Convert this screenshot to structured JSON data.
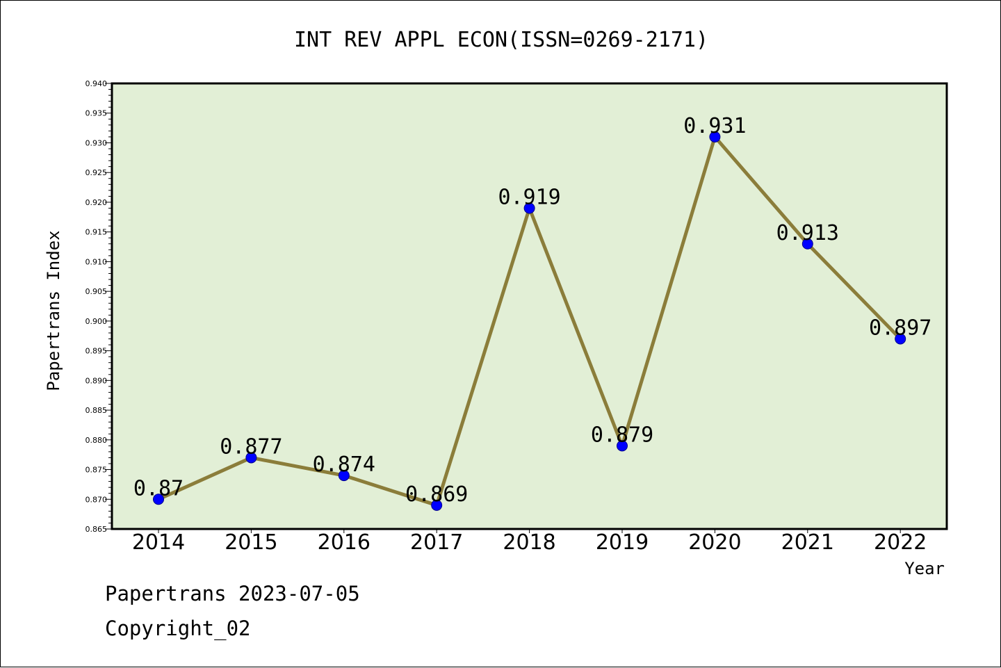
{
  "chart_data": {
    "type": "line",
    "title": "INT REV APPL ECON(ISSN=0269-2171)",
    "xlabel": "Year",
    "ylabel": "Papertrans Index",
    "categories": [
      "2014",
      "2015",
      "2016",
      "2017",
      "2018",
      "2019",
      "2020",
      "2021",
      "2022"
    ],
    "series": [
      {
        "values": [
          0.87,
          0.877,
          0.874,
          0.869,
          0.919,
          0.879,
          0.931,
          0.913,
          0.897
        ],
        "labels": [
          "0.87",
          "0.877",
          "0.874",
          "0.869",
          "0.919",
          "0.879",
          "0.931",
          "0.913",
          "0.897"
        ],
        "line_color": "#8b7d3a",
        "marker_color": "#0000ff"
      }
    ],
    "ylim": [
      0.865,
      0.94
    ],
    "yticks": [
      "0.865",
      "0.870",
      "0.875",
      "0.880",
      "0.885",
      "0.890",
      "0.895",
      "0.900",
      "0.905",
      "0.910",
      "0.915",
      "0.920",
      "0.925",
      "0.930",
      "0.935",
      "0.940"
    ],
    "plot_background": "#e2efd6",
    "grid": false
  },
  "footer": {
    "date_line": "Papertrans 2023-07-05",
    "copyright_line": "Copyright_02"
  }
}
